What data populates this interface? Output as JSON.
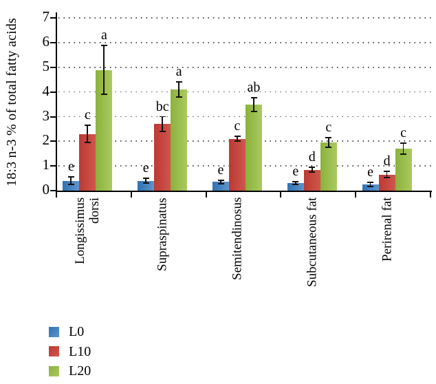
{
  "chart_data": {
    "type": "bar",
    "title": "",
    "ylabel": "18:3 n-3 % of total fatty acids",
    "xlabel": "",
    "ylim": [
      0,
      7
    ],
    "yticks": [
      0,
      1,
      2,
      3,
      4,
      5,
      6,
      7
    ],
    "grid": "dotted-horizontal",
    "legend_position": "bottom-left",
    "error_bars": true,
    "categories": [
      "Longissimus\ndorsi",
      "Supraspinatus",
      "Semitendinosus",
      "Subcutaneous fat",
      "Perirenal fat"
    ],
    "series": [
      {
        "name": "L0",
        "color": "#2F72B3",
        "color_light": "#5E94CA",
        "values": [
          0.4,
          0.4,
          0.35,
          0.3,
          0.25
        ],
        "errors": [
          0.15,
          0.1,
          0.06,
          0.05,
          0.08
        ],
        "letters": [
          "e",
          "e",
          "e",
          "e",
          "e"
        ]
      },
      {
        "name": "L10",
        "color": "#BC3934",
        "color_light": "#CE574C",
        "values": [
          2.3,
          2.7,
          2.1,
          0.85,
          0.65
        ],
        "errors": [
          0.35,
          0.3,
          0.1,
          0.1,
          0.12
        ],
        "letters": [
          "c",
          "bc",
          "c",
          "d",
          "d"
        ]
      },
      {
        "name": "L20",
        "color": "#8BB13C",
        "color_light": "#AACA60",
        "values": [
          4.9,
          4.1,
          3.5,
          1.95,
          1.7
        ],
        "errors": [
          1.0,
          0.3,
          0.28,
          0.2,
          0.22
        ],
        "letters": [
          "a",
          "a",
          "ab",
          "c",
          "c"
        ]
      }
    ]
  }
}
